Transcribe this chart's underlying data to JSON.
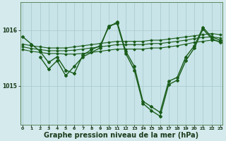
{
  "background_color": "#d4eaed",
  "plot_bg_color": "#c8e4e8",
  "grid_color": "#a8c8cc",
  "line_color": "#1a5c1a",
  "xlabel": "Graphe pression niveau de la mer (hPa)",
  "xlabel_fontsize": 7.0,
  "yticks": [
    1015,
    1016
  ],
  "ylim": [
    1014.3,
    1016.5
  ],
  "xlim": [
    -0.3,
    23.3
  ],
  "xticks": [
    0,
    1,
    2,
    3,
    4,
    5,
    6,
    7,
    8,
    9,
    10,
    11,
    12,
    13,
    14,
    15,
    16,
    17,
    18,
    19,
    20,
    21,
    22,
    23
  ],
  "series": [
    {
      "x": [
        0,
        1,
        2,
        3,
        4,
        5,
        6,
        7,
        8,
        9,
        10,
        11,
        12,
        13,
        14,
        15,
        16,
        17,
        18,
        19,
        20,
        21,
        22,
        23
      ],
      "y": [
        1015.88,
        1015.75,
        1015.62,
        1015.42,
        1015.52,
        1015.28,
        1015.22,
        1015.55,
        1015.65,
        1015.72,
        1016.05,
        1016.15,
        1015.62,
        1015.35,
        1014.72,
        1014.62,
        1014.52,
        1015.08,
        1015.15,
        1015.52,
        1015.72,
        1016.05,
        1015.88,
        1015.82
      ],
      "marker": "D",
      "markersize": 2.0,
      "linewidth": 1.0
    },
    {
      "x": [
        0,
        1,
        2,
        3,
        4,
        5,
        6,
        7,
        8,
        9,
        10,
        11,
        12,
        13,
        14,
        15,
        16,
        17,
        18,
        19,
        20,
        21,
        22,
        23
      ],
      "y": [
        1015.75,
        1015.72,
        1015.7,
        1015.68,
        1015.68,
        1015.68,
        1015.7,
        1015.72,
        1015.74,
        1015.76,
        1015.78,
        1015.8,
        1015.8,
        1015.8,
        1015.8,
        1015.82,
        1015.82,
        1015.84,
        1015.86,
        1015.88,
        1015.9,
        1015.92,
        1015.94,
        1015.92
      ],
      "marker": "D",
      "markersize": 1.5,
      "linewidth": 0.8
    },
    {
      "x": [
        0,
        1,
        2,
        3,
        4,
        5,
        6,
        7,
        8,
        9,
        10,
        11,
        12,
        13,
        14,
        15,
        16,
        17,
        18,
        19,
        20,
        21,
        22,
        23
      ],
      "y": [
        1015.7,
        1015.67,
        1015.65,
        1015.63,
        1015.63,
        1015.63,
        1015.64,
        1015.66,
        1015.68,
        1015.7,
        1015.72,
        1015.74,
        1015.74,
        1015.74,
        1015.74,
        1015.76,
        1015.76,
        1015.78,
        1015.8,
        1015.82,
        1015.85,
        1015.87,
        1015.88,
        1015.86
      ],
      "marker": "D",
      "markersize": 1.5,
      "linewidth": 0.8
    },
    {
      "x": [
        0,
        1,
        2,
        3,
        4,
        5,
        6,
        7,
        8,
        9,
        10,
        11,
        12,
        13,
        14,
        15,
        16,
        17,
        18,
        19,
        20,
        21,
        22,
        23
      ],
      "y": [
        1015.65,
        1015.62,
        1015.6,
        1015.58,
        1015.58,
        1015.57,
        1015.57,
        1015.58,
        1015.6,
        1015.62,
        1015.64,
        1015.66,
        1015.66,
        1015.66,
        1015.66,
        1015.68,
        1015.68,
        1015.7,
        1015.72,
        1015.75,
        1015.78,
        1015.8,
        1015.82,
        1015.8
      ],
      "marker": "D",
      "markersize": 1.5,
      "linewidth": 0.8
    },
    {
      "x": [
        2,
        3,
        4,
        5,
        6,
        7,
        8,
        9,
        10,
        11,
        12,
        13,
        14,
        15,
        16,
        17,
        18,
        19,
        20,
        21,
        22,
        23
      ],
      "y": [
        1015.52,
        1015.3,
        1015.45,
        1015.18,
        1015.35,
        1015.52,
        1015.6,
        1015.68,
        1016.08,
        1016.12,
        1015.58,
        1015.28,
        1014.68,
        1014.55,
        1014.45,
        1015.02,
        1015.1,
        1015.45,
        1015.68,
        1016.02,
        1015.85,
        1015.78
      ],
      "marker": "D",
      "markersize": 2.0,
      "linewidth": 1.0
    }
  ]
}
